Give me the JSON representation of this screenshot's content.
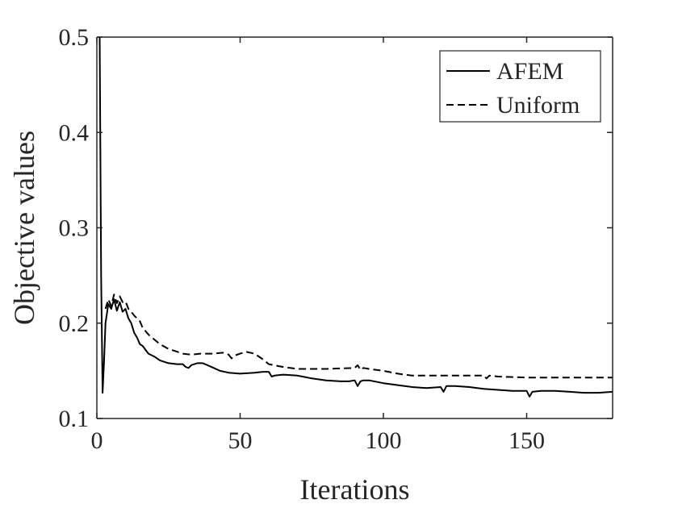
{
  "chart_data": {
    "type": "line",
    "title": "",
    "xlabel": "Iterations",
    "ylabel": "Objective values",
    "xlim": [
      0,
      180
    ],
    "ylim": [
      0.1,
      0.5
    ],
    "xticks": [
      "0",
      "50",
      "100",
      "150"
    ],
    "yticks": [
      "0.1",
      "0.2",
      "0.3",
      "0.4",
      "0.5"
    ],
    "grid": false,
    "legend_position": "top-right",
    "series": [
      {
        "name": "AFEM",
        "style": "solid",
        "color": "#000000",
        "x": [
          1,
          1.5,
          2,
          2.5,
          3,
          4,
          5,
          6,
          7,
          8,
          9,
          10,
          11,
          12,
          13,
          14,
          15,
          16,
          17,
          18,
          20,
          22,
          25,
          28,
          30,
          31,
          32,
          33,
          35,
          37,
          40,
          43,
          46,
          50,
          55,
          58,
          60,
          61,
          62,
          65,
          70,
          75,
          80,
          85,
          88,
          90,
          91,
          92,
          93,
          95,
          100,
          105,
          110,
          115,
          120,
          121,
          122,
          125,
          130,
          135,
          140,
          145,
          150,
          151,
          152,
          155,
          160,
          165,
          170,
          175,
          180
        ],
        "y": [
          0.5,
          0.25,
          0.127,
          0.16,
          0.2,
          0.22,
          0.215,
          0.225,
          0.213,
          0.222,
          0.212,
          0.215,
          0.205,
          0.2,
          0.19,
          0.185,
          0.178,
          0.176,
          0.172,
          0.168,
          0.165,
          0.161,
          0.158,
          0.157,
          0.157,
          0.154,
          0.153,
          0.156,
          0.158,
          0.158,
          0.154,
          0.15,
          0.148,
          0.147,
          0.148,
          0.149,
          0.149,
          0.144,
          0.145,
          0.146,
          0.145,
          0.142,
          0.14,
          0.139,
          0.139,
          0.14,
          0.134,
          0.139,
          0.14,
          0.14,
          0.137,
          0.135,
          0.133,
          0.132,
          0.133,
          0.128,
          0.134,
          0.134,
          0.133,
          0.131,
          0.13,
          0.129,
          0.129,
          0.123,
          0.128,
          0.129,
          0.129,
          0.128,
          0.127,
          0.127,
          0.128
        ]
      },
      {
        "name": "Uniform",
        "style": "dashed",
        "color": "#000000",
        "x": [
          3,
          4,
          5,
          6,
          7,
          8,
          9,
          10,
          11,
          12,
          13,
          14,
          15,
          16,
          18,
          20,
          22,
          25,
          28,
          30,
          33,
          36,
          40,
          44,
          46,
          47,
          48,
          50,
          52,
          55,
          58,
          60,
          65,
          70,
          80,
          90,
          91,
          92,
          93,
          95,
          100,
          105,
          110,
          120,
          130,
          135,
          136,
          137,
          140,
          150,
          160,
          170,
          180
        ],
        "y": [
          0.215,
          0.225,
          0.218,
          0.23,
          0.221,
          0.228,
          0.222,
          0.223,
          0.215,
          0.212,
          0.208,
          0.205,
          0.202,
          0.195,
          0.188,
          0.183,
          0.178,
          0.173,
          0.17,
          0.168,
          0.167,
          0.168,
          0.168,
          0.169,
          0.167,
          0.163,
          0.166,
          0.168,
          0.17,
          0.168,
          0.162,
          0.157,
          0.154,
          0.152,
          0.152,
          0.153,
          0.156,
          0.151,
          0.153,
          0.152,
          0.15,
          0.147,
          0.145,
          0.145,
          0.145,
          0.145,
          0.142,
          0.145,
          0.144,
          0.143,
          0.143,
          0.143,
          0.143
        ]
      }
    ]
  }
}
